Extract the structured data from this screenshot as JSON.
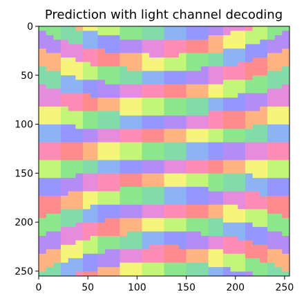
{
  "chart_data": {
    "type": "heatmap",
    "title": "Prediction with light channel decoding",
    "xlabel": "",
    "ylabel": "",
    "xlim": [
      0,
      255
    ],
    "ylim": [
      255,
      0
    ],
    "x_ticks": [
      {
        "value": 0,
        "label": "0"
      },
      {
        "value": 50,
        "label": "50"
      },
      {
        "value": 100,
        "label": "100"
      },
      {
        "value": 150,
        "label": "150"
      },
      {
        "value": 200,
        "label": "200"
      },
      {
        "value": 250,
        "label": "250"
      }
    ],
    "y_ticks": [
      {
        "value": 0,
        "label": "0"
      },
      {
        "value": 50,
        "label": "50"
      },
      {
        "value": 100,
        "label": "100"
      },
      {
        "value": 150,
        "label": "150"
      },
      {
        "value": 200,
        "label": "200"
      },
      {
        "value": 250,
        "label": "250"
      }
    ],
    "image_size": [
      256,
      256
    ],
    "grid": false,
    "legend": "none",
    "palette": [
      "#ff8c8c",
      "#ffb482",
      "#f5f57a",
      "#c3f578",
      "#8ce68c",
      "#82dcaa",
      "#8cb4f5",
      "#9696ff",
      "#b48cf5",
      "#e68cdc",
      "#ff8cb4"
    ],
    "pattern": "horizontal stripes that bow upward near the top and downward near the bottom; colors cycle through the palette along each stripe"
  }
}
